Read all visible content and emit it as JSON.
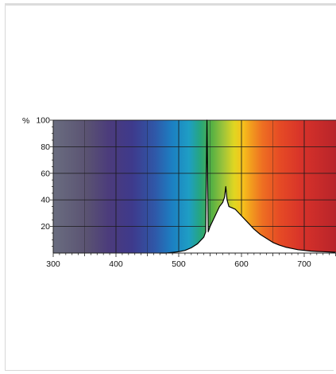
{
  "chart_data": {
    "type": "area",
    "title": "",
    "xlabel": "",
    "ylabel": "%",
    "xlim": [
      300,
      750
    ],
    "ylim": [
      0,
      100
    ],
    "x_ticks": [
      300,
      400,
      500,
      600,
      700
    ],
    "y_ticks": [
      20,
      40,
      60,
      80,
      100
    ],
    "grid": true,
    "background": "visible spectrum gradient (violet to red)",
    "series": [
      {
        "x": [
          470,
          480,
          490,
          500,
          510,
          520,
          530,
          540,
          543,
          545,
          547,
          550,
          555,
          560,
          565,
          570,
          573,
          575,
          577,
          580,
          585,
          590,
          600,
          610,
          620,
          630,
          640,
          650,
          660,
          670,
          680,
          690,
          700,
          710,
          720,
          730,
          740,
          750
        ],
        "y": [
          0,
          0,
          0.5,
          1,
          2,
          4,
          7,
          12,
          16,
          100,
          16,
          20,
          25,
          30,
          35,
          38,
          42,
          50,
          40,
          35,
          34,
          33,
          28,
          23,
          18,
          14,
          11,
          8,
          6,
          4.5,
          3.5,
          2.5,
          2,
          1.5,
          1.2,
          1,
          0.8,
          0.6
        ],
        "color": "#ffffff"
      }
    ],
    "colors": {
      "curve": "#000000",
      "fill": "#ffffff",
      "grid": "#1a1a1a",
      "text": "#111111"
    }
  }
}
